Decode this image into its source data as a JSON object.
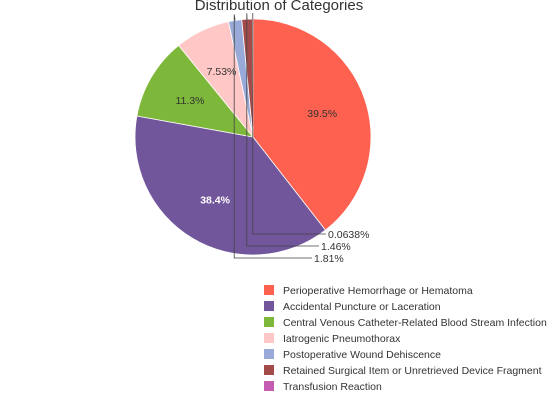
{
  "chart_data": {
    "type": "pie",
    "title": "Distribution of Categories",
    "slices": [
      {
        "label": "Perioperative Hemorrhage or Hematoma",
        "percent": 39.5,
        "percent_label": "39.5%",
        "color": "#FF6150"
      },
      {
        "label": "Accidental Puncture or Laceration",
        "percent": 38.4,
        "percent_label": "38.4%",
        "color": "#72569C"
      },
      {
        "label": "Central Venous Catheter-Related Blood Stream Infection",
        "percent": 11.3,
        "percent_label": "11.3%",
        "color": "#7EB83A"
      },
      {
        "label": "Iatrogenic Pneumothorax",
        "percent": 7.53,
        "percent_label": "7.53%",
        "color": "#FFC8C6"
      },
      {
        "label": "Postoperative Wound Dehiscence",
        "percent": 1.81,
        "percent_label": "1.81%",
        "color": "#9AAAD8"
      },
      {
        "label": "Retained Surgical Item or Unretrieved Device Fragment",
        "percent": 1.46,
        "percent_label": "1.46%",
        "color": "#A34B4B"
      },
      {
        "label": "Transfusion Reaction",
        "percent": 0.0638,
        "percent_label": "0.0638%",
        "color": "#C45CB2"
      }
    ],
    "legend_position": "bottom-right",
    "start_angle_deg": 90,
    "direction": "clockwise"
  }
}
